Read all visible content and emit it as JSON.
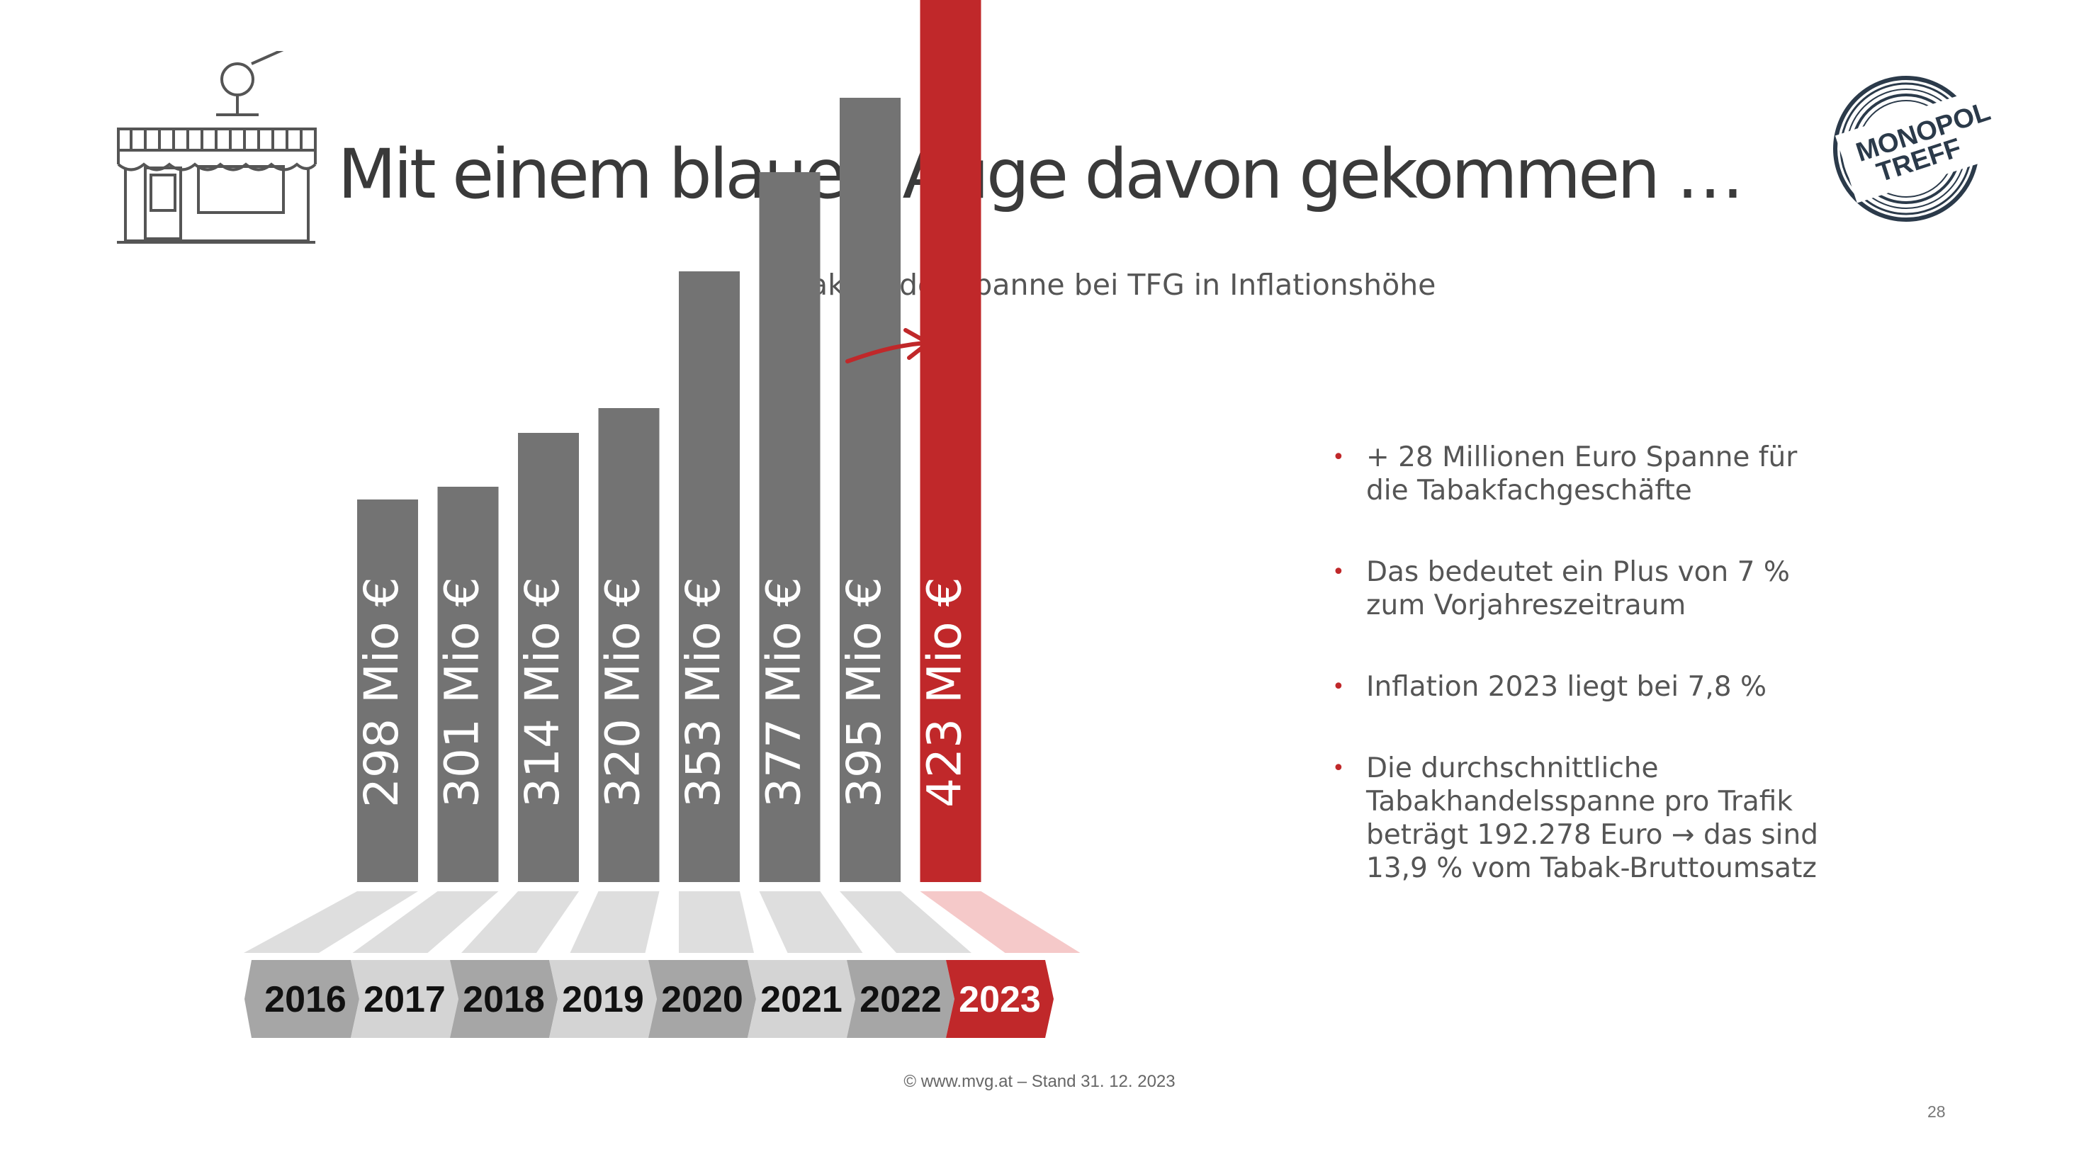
{
  "slide": {
    "title": "Mit einem blauen Auge davon gekommen …",
    "footer": "© www.mvg.at – Stand 31. 12. 2023",
    "page_number": "28"
  },
  "logo": {
    "line1": "MONOPOL",
    "line2": "TREFF"
  },
  "bullets": [
    "+ 28 Millionen Euro Spanne für die Tabakfachgeschäfte",
    "Das bedeutet ein Plus von 7 % zum Vorjahreszeitraum",
    "Inflation 2023 liegt bei 7,8 %",
    "Die durchschnittliche Tabakhandelsspanne pro Trafik beträgt 192.278 Euro → das sind 13,9 % vom Tabak-Bruttoumsatz"
  ],
  "colors": {
    "bar": "#737373",
    "highlight": "#c0282a",
    "base": "#dedede",
    "base_highlight": "#f5c9c9",
    "ribbon_a": "#a6a6a6",
    "ribbon_b": "#d4d4d4",
    "text_dark": "#3a3a3a"
  },
  "icons": [
    "tobacco-shop-icon",
    "monopol-treff-logo",
    "trend-arrow-icon"
  ],
  "chart_data": {
    "type": "bar",
    "title": "Tabakhandelsspanne bei TFG in Inflationshöhe",
    "categories": [
      "2016",
      "2017",
      "2018",
      "2019",
      "2020",
      "2021",
      "2022",
      "2023"
    ],
    "values": [
      298,
      301,
      314,
      320,
      353,
      377,
      395,
      423
    ],
    "value_labels": [
      "298 Mio €",
      "301 Mio €",
      "314 Mio €",
      "320 Mio €",
      "353 Mio €",
      "377 Mio €",
      "395 Mio €",
      "423 Mio €"
    ],
    "unit": "Mio €",
    "highlight_index": 7,
    "xlabel": "",
    "ylabel": "",
    "grid": false,
    "legend": "none"
  }
}
